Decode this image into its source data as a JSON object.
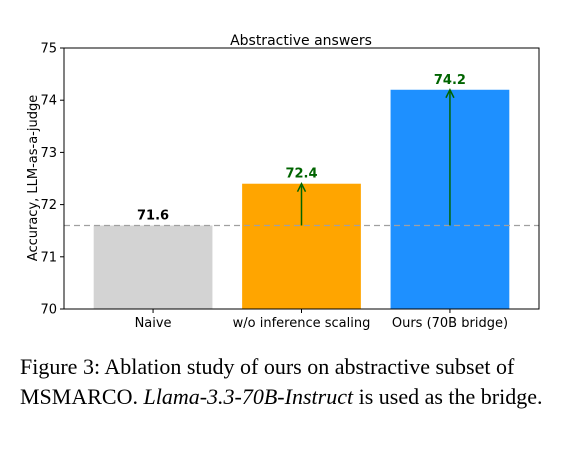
{
  "chart_data": {
    "type": "bar",
    "title": "Abstractive answers",
    "xlabel": "",
    "ylabel": "Accuracy, LLM-as-a-judge",
    "ylim": [
      70,
      75
    ],
    "yticks": [
      "70",
      "71",
      "72",
      "73",
      "74",
      "75"
    ],
    "categories": [
      "Naive",
      "w/o inference scaling",
      "Ours (70B bridge)"
    ],
    "values": [
      71.6,
      72.4,
      74.2
    ],
    "value_labels": [
      "71.6",
      "72.4",
      "74.2"
    ],
    "bar_colors": [
      "#d3d3d3",
      "#ffa500",
      "#1e90ff"
    ],
    "label_colors": [
      "#000000",
      "#006400",
      "#006400"
    ],
    "baseline": 71.6,
    "baseline_color": "#a0a0a0",
    "arrow_color": "#006400",
    "grid": false,
    "legend": "none"
  },
  "caption": {
    "prefix": "Figure 3: Ablation study of ours on abstractive subset of MSMARCO. ",
    "italic": "Llama-3.3-70B-Instruct",
    "suffix": " is used as the bridge."
  }
}
